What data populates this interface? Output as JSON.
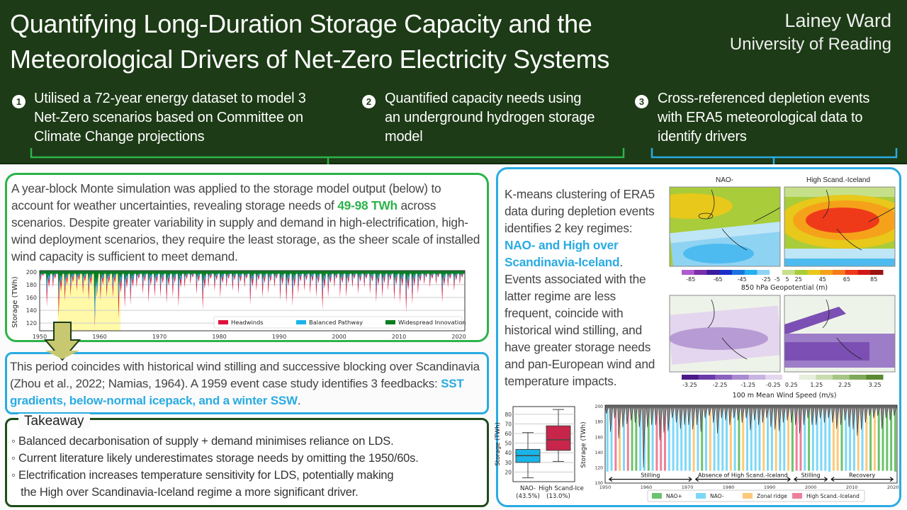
{
  "header": {
    "title_line1": "Quantifying Long-Duration Storage Capacity and the",
    "title_line2": "Meteorological Drivers of Net-Zero Electricity Systems",
    "author": "Lainey Ward",
    "affiliation": "University of Reading",
    "steps": [
      {
        "num": "1",
        "lines": [
          "Utilised a 72-year energy dataset to model 3",
          "Net-Zero scenarios based on Committee on",
          "Climate Change projections"
        ]
      },
      {
        "num": "2",
        "lines": [
          "Quantified capacity needs using",
          "an underground hydrogen storage",
          "model"
        ]
      },
      {
        "num": "3",
        "lines": [
          "Cross-referenced depletion events",
          "with ERA5 meteorological data to",
          "identify drivers"
        ]
      }
    ]
  },
  "colors": {
    "header_bg": "#1d3b16",
    "green": "#2db34a",
    "blue": "#29abe2",
    "dark_green": "#1e4d1a"
  },
  "left_panel": {
    "text_before": "A year-block Monte simulation was applied to the storage model output (below) to account for weather uncertainties, revealing storage needs of ",
    "highlight": "49-98 TWh",
    "text_after": " across scenarios. Despite greater variability in supply and demand in high-electrification, high-wind deployment scenarios, they require the least storage, as the sheer scale of installed wind capacity is sufficient to meet demand."
  },
  "period_box": {
    "text": "This period coincides with historical wind stilling and successive blocking over Scandinavia (Zhou et al., 2022; Namias, 1964). A 1959 event case study identifies 3 feedbacks: ",
    "highlight": "SST gradients, below-normal icepack, and a winter SSW",
    "end": "."
  },
  "takeaway": {
    "title": "Takeaway",
    "bullets": [
      "◦ Balanced decarbonisation of supply + demand minimises reliance on LDS.",
      "◦ Current literature likely underestimates storage needs by omitting the 1950/60s.",
      "◦ Electrification increases temperature sensitivity for LDS, potentially making",
      "   the High over Scandinavia-Iceland regime a more significant driver."
    ]
  },
  "right_panel": {
    "text_before": "K-means clustering of ERA5 data during depletion events identifies 2 key regimes: ",
    "highlight": "NAO- and High over Scandinavia-Iceland",
    "text_after": ". Events associated with the latter regime are less frequent, coincide with historical wind stilling, and have greater storage needs and pan-European wind and temperature impacts."
  },
  "maps": {
    "col_titles": [
      "NAO-",
      "High Scand.-Iceland"
    ],
    "geopotential_label": "850 hPa Geopotential (m)",
    "geopotential_ticks": [
      "-85",
      "-65",
      "-45",
      "-25",
      "-5",
      "5",
      "25",
      "45",
      "65",
      "85"
    ],
    "wind_label": "100 m Mean Wind Speed (m/s)",
    "wind_ticks": [
      "-3.25",
      "-2.25",
      "-1.25",
      "-0.25",
      "0.25",
      "1.25",
      "2.25",
      "3.25"
    ]
  },
  "chart_data": [
    {
      "type": "area",
      "ylabel": "Storage (TWh)",
      "ylim": [
        108,
        202
      ],
      "xlim": [
        1950,
        2021
      ],
      "yticks": [
        "120",
        "140",
        "160",
        "180",
        "200"
      ],
      "xticks": [
        "1950",
        "1960",
        "1970",
        "1980",
        "1990",
        "2000",
        "2010",
        "2020"
      ],
      "grid": true,
      "legend": "bottom-right",
      "highlight_period": [
        1953,
        1963.5
      ],
      "highlight_color": "#fff9a8",
      "years_start": 1950,
      "series": [
        {
          "name": "Headwinds",
          "color": "#dc143c",
          "annual_min": [
            185,
            145,
            175,
            130,
            155,
            162,
            170,
            165,
            155,
            113,
            155,
            160,
            160,
            127,
            143,
            147,
            175,
            165,
            152,
            160,
            160,
            150,
            160,
            145,
            175,
            180,
            165,
            141,
            175,
            170,
            160,
            175,
            170,
            165,
            175,
            148,
            170,
            160,
            165,
            175,
            155,
            150,
            147,
            165,
            170,
            165,
            160,
            141,
            160,
            175,
            160,
            160,
            175,
            165,
            175,
            165,
            152,
            160,
            170,
            155,
            150,
            136,
            150,
            165,
            180,
            175,
            180,
            152,
            175,
            170,
            180
          ]
        },
        {
          "name": "Balanced Pathway",
          "color": "#1ab4e8",
          "annual_min": [
            191,
            167,
            185,
            158,
            173,
            177,
            182,
            179,
            173,
            120,
            173,
            176,
            176,
            156,
            166,
            168,
            185,
            179,
            171,
            176,
            176,
            170,
            176,
            167,
            185,
            188,
            179,
            165,
            185,
            182,
            176,
            185,
            182,
            179,
            185,
            169,
            182,
            176,
            179,
            185,
            173,
            170,
            168,
            179,
            182,
            179,
            176,
            165,
            176,
            185,
            176,
            176,
            185,
            179,
            185,
            179,
            171,
            176,
            182,
            173,
            170,
            162,
            170,
            179,
            188,
            185,
            188,
            171,
            185,
            182,
            188
          ]
        },
        {
          "name": "Widespread Innovation",
          "color": "#0a7d1e",
          "annual_min": [
            196,
            184,
            192,
            179,
            186,
            189,
            191,
            190,
            186,
            152,
            186,
            188,
            188,
            178,
            183,
            184,
            192,
            190,
            186,
            188,
            188,
            185,
            188,
            184,
            192,
            194,
            190,
            182,
            192,
            191,
            188,
            192,
            191,
            190,
            192,
            184,
            191,
            188,
            190,
            192,
            186,
            185,
            184,
            190,
            191,
            190,
            188,
            182,
            188,
            192,
            188,
            188,
            192,
            190,
            192,
            190,
            186,
            188,
            191,
            186,
            185,
            181,
            185,
            190,
            194,
            192,
            194,
            186,
            192,
            191,
            194
          ]
        }
      ]
    },
    {
      "type": "box",
      "ylabel": "Storage (TWh)",
      "ylim": [
        10,
        88
      ],
      "yticks": [
        "20",
        "30",
        "40",
        "50",
        "60",
        "70",
        "80"
      ],
      "boxes": [
        {
          "label": "NAO-",
          "share": "(43.5%)",
          "color": "#1ab4e8",
          "min": 14,
          "q1": 30,
          "median": 37,
          "q3": 43.5,
          "max": 61
        },
        {
          "label": "High Scand-Ice",
          "share": "(13.0%)",
          "color": "#c8254a",
          "min": 31,
          "q1": 42.5,
          "median": 53.5,
          "q3": 68,
          "max": 85
        }
      ]
    },
    {
      "type": "bar",
      "ylabel": "Storage (TWh)",
      "ylim": [
        100,
        202
      ],
      "xlim": [
        1950,
        2021
      ],
      "yticks": [
        "100",
        "120",
        "140",
        "160",
        "180",
        "200"
      ],
      "xticks": [
        "1950",
        "1960",
        "1970",
        "1980",
        "1990",
        "2000",
        "2010",
        "2020"
      ],
      "legend": "bottom",
      "regimes": {
        "NAO+": "#6cc36c",
        "NAO-": "#7dd8f8",
        "Zonal ridge": "#fdc97a",
        "High Scand.-Iceland": "#ef7f98"
      },
      "event_years_start": 1950,
      "event_regimes": [
        "NAO-",
        "NAO-",
        "High Scand.-Iceland",
        "Zonal ridge",
        "NAO-",
        "High Scand.-Iceland",
        "NAO+",
        "NAO+",
        "NAO-",
        "NAO-",
        "NAO+",
        "NAO-",
        "High Scand.-Iceland",
        "High Scand.-Iceland",
        "High Scand.-Iceland",
        "NAO-",
        "NAO-",
        "NAO-",
        "NAO-",
        "NAO-",
        "NAO-",
        "Zonal ridge",
        "NAO-",
        "NAO+",
        "NAO-",
        "Zonal ridge",
        "NAO-",
        "NAO-",
        "NAO-",
        "NAO-",
        "Zonal ridge",
        "NAO-",
        "NAO+",
        "Zonal ridge",
        "NAO-",
        "NAO-",
        "NAO-",
        "NAO-",
        "Zonal ridge",
        "NAO-",
        "NAO-",
        "Zonal ridge",
        "NAO-",
        "NAO-",
        "Zonal ridge",
        "NAO+",
        "High Scand.-Iceland",
        "High Scand.-Iceland",
        "NAO-",
        "NAO+",
        "NAO-",
        "NAO-",
        "NAO-",
        "NAO-",
        "NAO-",
        "Zonal ridge",
        "Zonal ridge",
        "NAO+",
        "NAO-",
        "NAO-",
        "NAO-",
        "Zonal ridge",
        "NAO-",
        "Zonal ridge",
        "NAO+",
        "Zonal ridge",
        "NAO+",
        "NAO+",
        "NAO+",
        "NAO+",
        "NAO+"
      ],
      "periods": [
        {
          "label": "Stilling",
          "start": 1951,
          "end": 1971
        },
        {
          "label": "Absence of High Scand.-Iceland",
          "start": 1972,
          "end": 1995
        },
        {
          "label": "Stilling",
          "start": 1996,
          "end": 2004
        },
        {
          "label": "Recovery",
          "start": 2005,
          "end": 2020
        }
      ]
    }
  ]
}
